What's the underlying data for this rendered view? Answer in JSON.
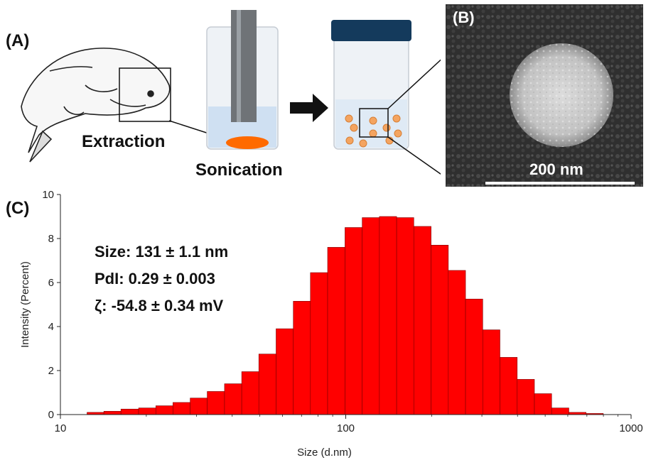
{
  "panels": {
    "a_label": "(A)",
    "b_label": "(B)",
    "c_label": "(C)",
    "extraction": "Extraction",
    "sonication": "Sonication",
    "scale_bar": "200 nm"
  },
  "colors": {
    "bar_fill": "#ff0000",
    "bar_edge": "#7a0000",
    "particle": "#f4a460",
    "extract": "#ff6a00",
    "jar_cap": "#143a5c"
  },
  "stats": {
    "size": "Size: 131 ± 1.1 nm",
    "pdi": "PdI: 0.29 ± 0.003",
    "zeta": "ζ: -54.8 ± 0.34 mV"
  },
  "chart_data": {
    "type": "bar",
    "xscale": "log",
    "xlabel": "Size (d.nm)",
    "ylabel": "Intensity (Percent)",
    "xlim": [
      10,
      1000
    ],
    "ylim": [
      0,
      10
    ],
    "xticks": [
      "10",
      "100",
      "1000"
    ],
    "yticks": [
      "0",
      "2",
      "4",
      "6",
      "8",
      "10"
    ],
    "bin_edges": [
      12.4,
      14.2,
      16.3,
      18.8,
      21.6,
      24.8,
      28.5,
      32.7,
      37.6,
      43.2,
      49.6,
      57.0,
      65.5,
      75.2,
      86.4,
      99.4,
      114.2,
      131.2,
      150.8,
      173.2,
      199.1,
      228.8,
      262.9,
      302.1,
      347.1,
      398.9,
      458.4,
      526.7,
      605.3,
      695.5,
      799.2
    ],
    "values": [
      0.1,
      0.15,
      0.25,
      0.3,
      0.4,
      0.55,
      0.75,
      1.05,
      1.4,
      1.95,
      2.75,
      3.9,
      5.15,
      6.45,
      7.6,
      8.5,
      8.95,
      9.0,
      8.95,
      8.55,
      7.7,
      6.55,
      5.25,
      3.85,
      2.6,
      1.6,
      0.95,
      0.3,
      0.1,
      0.05
    ]
  }
}
